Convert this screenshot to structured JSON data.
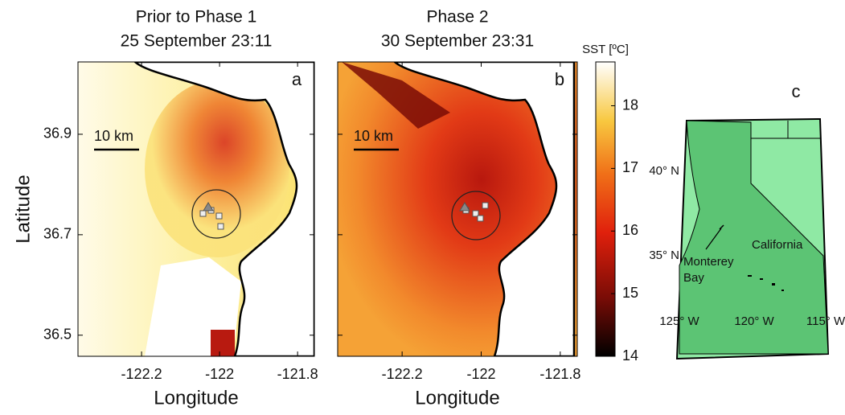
{
  "y_label": "Latitude",
  "x_label": "Longitude",
  "panels": [
    {
      "title": [
        "Prior to Phase 1",
        "25 September 23:11"
      ],
      "letter": "a",
      "scale_bar": "10 km",
      "xlim": [
        -122.363,
        -121.757
      ],
      "ylim": [
        36.458,
        37.044
      ],
      "xticks": [
        -122.2,
        -122,
        -121.8
      ],
      "yticks": [
        36.5,
        36.7,
        36.9
      ]
    },
    {
      "title": [
        "Phase 2",
        "30 September 23:31"
      ],
      "letter": "b",
      "scale_bar": "10 km",
      "xlim": [
        -122.363,
        -121.757
      ],
      "ylim": [
        36.458,
        37.044
      ],
      "xticks": [
        -122.2,
        -122,
        -121.8
      ]
    }
  ],
  "colorbar": {
    "label": "SST [ºC]",
    "lim": [
      14,
      18.7
    ],
    "ticks": [
      14,
      15,
      16,
      17,
      18
    ]
  },
  "inset": {
    "letter": "c",
    "lat_labels": [
      "40° N",
      "35° N"
    ],
    "lon_labels": [
      "125° W",
      "120° W",
      "115° W"
    ],
    "state": "California",
    "place": [
      "Monterey",
      "Bay"
    ]
  }
}
